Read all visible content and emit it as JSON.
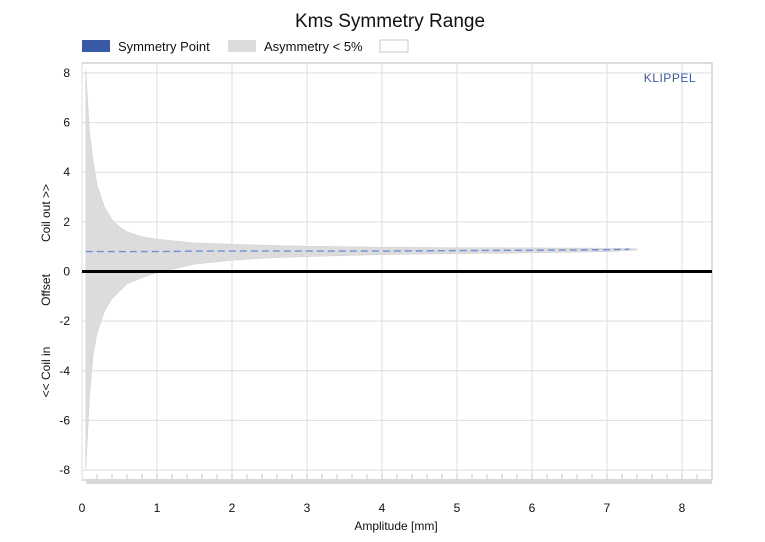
{
  "chart_data": {
    "type": "area",
    "title": "Kms Symmetry Range",
    "xlabel": "Amplitude [mm]",
    "ylabel_parts": [
      "<< Coil in",
      "Offset",
      "Coil out >>"
    ],
    "xlim": [
      0,
      8.4
    ],
    "ylim": [
      -8.4,
      8.4
    ],
    "x_ticks": [
      "0",
      "1",
      "2",
      "3",
      "4",
      "5",
      "6",
      "7",
      "8"
    ],
    "y_ticks": [
      "8",
      "6",
      "4",
      "2",
      "0",
      "-2",
      "-4",
      "-6",
      "-8"
    ],
    "x_tick_values": [
      0,
      1,
      2,
      3,
      4,
      5,
      6,
      7,
      8
    ],
    "y_tick_values": [
      8,
      6,
      4,
      2,
      0,
      -2,
      -4,
      -6,
      -8
    ],
    "grid": true,
    "legend": [
      {
        "label": "Symmetry Point",
        "color": "#3a5aa8"
      },
      {
        "label": "Asymmetry < 5%",
        "color": "#dcdcdc"
      },
      {
        "label": "",
        "color": "#ffffff"
      }
    ],
    "legend_position": "top",
    "watermark": "KLIPPEL",
    "series": [
      {
        "name": "Symmetry Point",
        "style": "dashed-line",
        "color": "#6f8fd6",
        "x": [
          0.05,
          0.3,
          0.6,
          1.0,
          1.5,
          2.0,
          3.0,
          4.0,
          5.0,
          6.0,
          7.0,
          7.3
        ],
        "y": [
          0.8,
          0.8,
          0.8,
          0.8,
          0.82,
          0.82,
          0.82,
          0.82,
          0.84,
          0.86,
          0.88,
          0.9
        ]
      },
      {
        "name": "Asymmetry < 5%",
        "style": "band",
        "color": "#dcdcdc",
        "x": [
          0.05,
          0.1,
          0.15,
          0.2,
          0.3,
          0.4,
          0.5,
          0.6,
          0.8,
          1.0,
          1.5,
          2.0,
          2.5,
          3.0,
          4.0,
          5.0,
          6.0,
          7.0,
          7.4
        ],
        "upper": [
          8.1,
          5.6,
          4.4,
          3.5,
          2.6,
          2.1,
          1.8,
          1.6,
          1.4,
          1.3,
          1.15,
          1.1,
          1.05,
          1.02,
          0.98,
          0.96,
          0.95,
          0.94,
          0.92
        ],
        "lower": [
          -8.0,
          -5.0,
          -3.3,
          -2.5,
          -1.6,
          -1.1,
          -0.8,
          -0.5,
          -0.25,
          -0.05,
          0.3,
          0.45,
          0.55,
          0.6,
          0.68,
          0.72,
          0.75,
          0.8,
          0.86
        ]
      }
    ],
    "reference_line": {
      "y": 0,
      "color": "#000000"
    }
  }
}
